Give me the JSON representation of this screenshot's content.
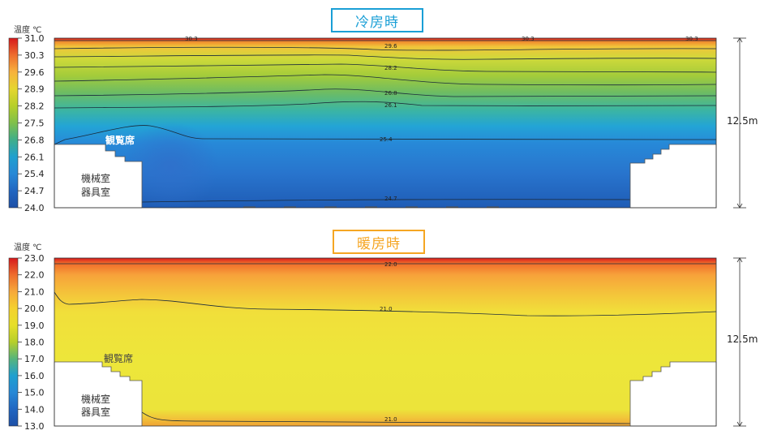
{
  "cooling": {
    "title": "冷房時",
    "colorbar_title": "温度 ℃",
    "colorbar_ticks": [
      "31.0",
      "30.3",
      "29.6",
      "28.9",
      "28.2",
      "27.5",
      "26.8",
      "26.1",
      "25.4",
      "24.7",
      "24.0"
    ],
    "colorbar_colors": [
      "#d7191c",
      "#ee6d2e",
      "#f7b23e",
      "#e5d62e",
      "#b6cf2a",
      "#7fc04b",
      "#3fae8a",
      "#1fa0cf",
      "#2788d6",
      "#2166c1",
      "#1d4fa6"
    ],
    "contour_labels": [
      "30.3",
      "30.3",
      "30.3",
      "29.6",
      "28.2",
      "26.8",
      "26.1",
      "25.4",
      "24.7"
    ],
    "seating_label": "観覧席",
    "room_label_1": "機械室",
    "room_label_2": "器具室",
    "height_label": "12.5m"
  },
  "heating": {
    "title": "暖房時",
    "colorbar_title": "温度 ℃",
    "colorbar_ticks": [
      "23.0",
      "22.0",
      "21.0",
      "20.0",
      "19.0",
      "18.0",
      "17.0",
      "16.0",
      "15.0",
      "14.0",
      "13.0"
    ],
    "colorbar_colors": [
      "#d7191c",
      "#ee6d2e",
      "#f6a93b",
      "#f4d12f",
      "#e6df2a",
      "#b6cf2a",
      "#56b47c",
      "#1fa0cf",
      "#2788d6",
      "#2166c1",
      "#1d4fa6"
    ],
    "contour_labels": [
      "22.0",
      "21.0",
      "21.0"
    ],
    "seating_label": "観覧席",
    "room_label_1": "機械室",
    "room_label_2": "器具室",
    "height_label": "12.5m"
  },
  "colors": {
    "cool_accent": "#1a9fd6",
    "heat_accent": "#f5a623"
  }
}
